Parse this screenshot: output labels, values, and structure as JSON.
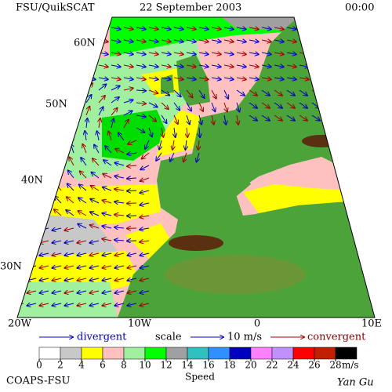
{
  "header": {
    "product": "FSU/QuikSCAT",
    "date": "22 September 2003",
    "time": "00:00"
  },
  "map": {
    "lat_labels": [
      "60N",
      "50N",
      "40N",
      "30N"
    ],
    "lon_labels": [
      "20W",
      "10W",
      "0",
      "10E"
    ]
  },
  "legend": {
    "divergent": "divergent",
    "scale": "scale",
    "scale_value": "10 m/s",
    "convergent": "convergent"
  },
  "colorbar": {
    "ticks": [
      0,
      2,
      4,
      6,
      8,
      10,
      12,
      14,
      16,
      18,
      20,
      22,
      24,
      26,
      28
    ],
    "unit": "m/s",
    "title": "Speed",
    "colors": [
      "#ffffff",
      "#c8c8c8",
      "#ffff00",
      "#ffc0c0",
      "#a0f0a0",
      "#00ff00",
      "#a0a0a0",
      "#30c0c0",
      "#3090ff",
      "#0000c0",
      "#ff80ff",
      "#c090ff",
      "#ff0000",
      "#c02000",
      "#000000"
    ]
  },
  "footer": {
    "left": "COAPS-FSU",
    "right": "Yan Gu"
  }
}
